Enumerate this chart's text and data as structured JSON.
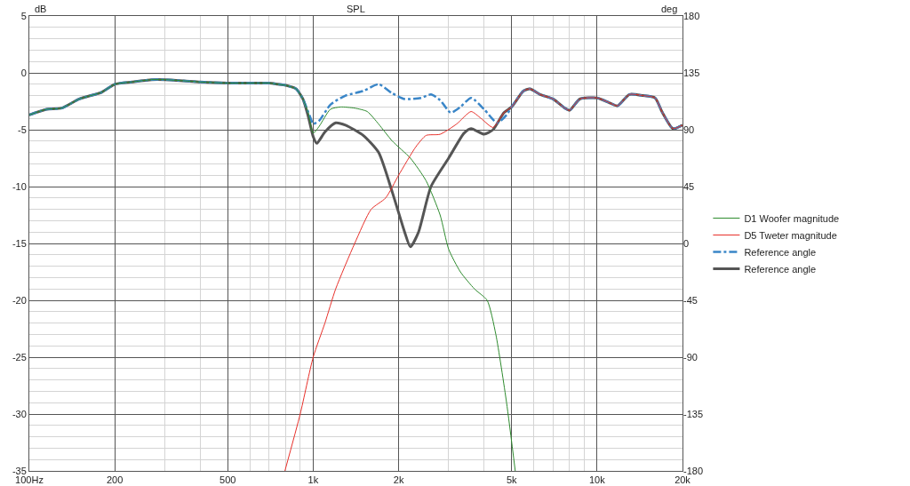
{
  "chart_data": {
    "type": "line",
    "title": "SPL",
    "ylabel": "dB",
    "y2label": "deg",
    "log": "x",
    "grid": true,
    "legend": "right",
    "marker": "none",
    "xlim": [
      100,
      20000
    ],
    "xticks": [
      {
        "value": 100,
        "label": "100Hz"
      },
      200,
      500,
      {
        "value": 1000,
        "label": "1k"
      },
      {
        "value": 2000,
        "label": "2k"
      },
      {
        "value": 5000,
        "label": "5k"
      },
      {
        "value": 10000,
        "label": "10k"
      },
      {
        "value": 20000,
        "label": "20k"
      }
    ],
    "ylim": [
      -35,
      5
    ],
    "yticks": [
      -35,
      -30,
      -25,
      -20,
      -15,
      -10,
      -5,
      0,
      5
    ],
    "y2lim": [
      -180,
      180
    ],
    "y2ticks": [
      -180,
      -135,
      -90,
      -45,
      0,
      45,
      90,
      135,
      180
    ],
    "series": [
      {
        "name": "D1 Woofer magnitude",
        "color": "#2e8b2e",
        "line_style": "solid",
        "x": [
          100,
          115,
          130,
          150,
          180,
          200,
          230,
          270,
          300,
          350,
          400,
          500,
          600,
          700,
          750,
          800,
          870,
          920,
          960,
          1000,
          1050,
          1150,
          1250,
          1400,
          1550,
          1700,
          1900,
          2200,
          2500,
          2800,
          3000,
          3300,
          3700,
          4100,
          4400,
          4800,
          5150
        ],
        "values": [
          -3.7,
          -3.2,
          -3.1,
          -2.3,
          -1.7,
          -1.0,
          -0.8,
          -0.6,
          -0.6,
          -0.7,
          -0.8,
          -0.9,
          -0.9,
          -0.9,
          -1.0,
          -1.1,
          -1.4,
          -2.3,
          -3.5,
          -5.3,
          -4.7,
          -3.2,
          -3.0,
          -3.1,
          -3.4,
          -4.5,
          -6.0,
          -7.5,
          -9.5,
          -12.5,
          -15.5,
          -17.5,
          -19,
          -20,
          -23,
          -29,
          -35
        ]
      },
      {
        "name": "D5 Tweter magnitude",
        "color": "#e8302a",
        "line_style": "solid",
        "x": [
          795,
          900,
          1000,
          1100,
          1200,
          1400,
          1600,
          1800,
          2000,
          2300,
          2500,
          2800,
          3200,
          3600,
          3900,
          4300,
          4700,
          5000,
          5500,
          5800,
          6300,
          7000,
          7700,
          8000,
          8700,
          10000,
          11000,
          11800,
          13000,
          14500,
          16000,
          17000,
          18500,
          20000
        ],
        "values": [
          -35,
          -30,
          -25,
          -22,
          -19,
          -15,
          -12,
          -11,
          -9,
          -6.5,
          -5.5,
          -5.4,
          -4.5,
          -3.4,
          -4.0,
          -4.8,
          -3.5,
          -3.0,
          -1.6,
          -1.4,
          -1.9,
          -2.3,
          -3.1,
          -3.3,
          -2.3,
          -2.2,
          -2.6,
          -2.9,
          -1.9,
          -2.0,
          -2.2,
          -3.5,
          -4.9,
          -4.6
        ]
      },
      {
        "name": "Reference angle",
        "color": "#3a86c8",
        "line_style": "dashdot",
        "x": [
          100,
          115,
          130,
          150,
          180,
          200,
          230,
          270,
          300,
          350,
          400,
          500,
          600,
          700,
          750,
          800,
          870,
          920,
          980,
          1000,
          1050,
          1150,
          1300,
          1500,
          1700,
          1900,
          2100,
          2400,
          2600,
          2800,
          3050,
          3300,
          3600,
          4000,
          4450,
          4800,
          5000,
          5500,
          5800,
          6300,
          7000,
          7700,
          8000,
          8700,
          10000,
          11000,
          11800,
          13000,
          14500,
          16000,
          17000,
          18500,
          20000
        ],
        "values": [
          -3.7,
          -3.2,
          -3.1,
          -2.3,
          -1.7,
          -1.0,
          -0.8,
          -0.6,
          -0.6,
          -0.7,
          -0.8,
          -0.9,
          -0.9,
          -0.9,
          -1.0,
          -1.1,
          -1.4,
          -2.3,
          -4.0,
          -4.5,
          -4.2,
          -2.8,
          -2.0,
          -1.6,
          -1.0,
          -1.8,
          -2.3,
          -2.2,
          -1.9,
          -2.4,
          -3.5,
          -3.0,
          -2.2,
          -3.2,
          -4.4,
          -3.7,
          -3.0,
          -1.6,
          -1.4,
          -1.9,
          -2.3,
          -3.1,
          -3.3,
          -2.3,
          -2.2,
          -2.6,
          -2.9,
          -1.9,
          -2.0,
          -2.2,
          -3.5,
          -4.9,
          -4.6
        ]
      },
      {
        "name": "Reference angle",
        "color": "#555555",
        "line_style": "solid",
        "x": [
          100,
          115,
          130,
          150,
          180,
          200,
          230,
          270,
          300,
          350,
          400,
          500,
          600,
          700,
          750,
          800,
          870,
          920,
          960,
          1000,
          1030,
          1100,
          1200,
          1300,
          1500,
          1700,
          1900,
          2100,
          2200,
          2350,
          2600,
          3000,
          3400,
          3600,
          4000,
          4300,
          4700,
          5000,
          5500,
          5800,
          6300,
          7000,
          7700,
          8000,
          8700,
          10000,
          11000,
          11800,
          13000,
          14500,
          16000,
          17000,
          18500,
          20000
        ],
        "values": [
          -3.7,
          -3.2,
          -3.1,
          -2.3,
          -1.7,
          -1.0,
          -0.8,
          -0.6,
          -0.6,
          -0.7,
          -0.8,
          -0.9,
          -0.9,
          -0.9,
          -1.0,
          -1.1,
          -1.4,
          -2.3,
          -3.8,
          -5.6,
          -6.2,
          -5.2,
          -4.4,
          -4.6,
          -5.5,
          -7,
          -10.5,
          -14,
          -15.3,
          -14,
          -10,
          -7.5,
          -5.3,
          -4.9,
          -5.4,
          -5.0,
          -3.5,
          -3.0,
          -1.6,
          -1.4,
          -1.9,
          -2.3,
          -3.1,
          -3.3,
          -2.3,
          -2.2,
          -2.6,
          -2.9,
          -1.9,
          -2.0,
          -2.2,
          -3.5,
          -4.9,
          -4.6
        ]
      }
    ]
  }
}
